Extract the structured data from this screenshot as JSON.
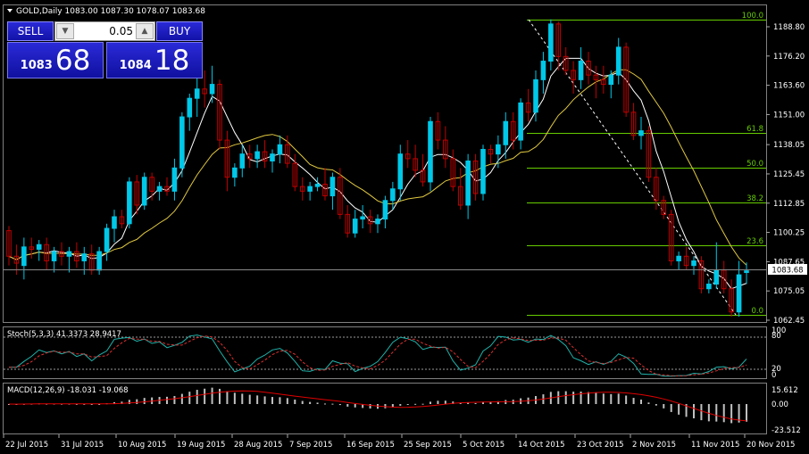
{
  "header": {
    "title": "GOLD,Daily  1083.00 1087.30 1078.07 1083.68"
  },
  "trade_panel": {
    "sell_label": "SELL",
    "buy_label": "BUY",
    "lot_value": "0.05",
    "sell_price_small": "1083",
    "sell_price_big": "68",
    "buy_price_small": "1084",
    "buy_price_big": "18"
  },
  "price_axis": {
    "ticks": [
      "1188.80",
      "1176.20",
      "1163.60",
      "1151.00",
      "1138.05",
      "1125.45",
      "1112.85",
      "1100.25",
      "1087.65",
      "1075.05",
      "1062.45"
    ],
    "current_price": "1083.68"
  },
  "fibonacci": {
    "levels": [
      "100.0",
      "61.8",
      "50.0",
      "38.2",
      "23.6",
      "0.0"
    ]
  },
  "stochastic": {
    "header": "Stoch(5,3,3) 41.3373 28.9417",
    "ticks": [
      "100",
      "80",
      "20",
      "0"
    ]
  },
  "macd": {
    "header": "MACD(12,26,9) -18.031 -19.068",
    "ticks": [
      "15.612",
      "0.00",
      "-23.512"
    ]
  },
  "time_axis": {
    "labels": [
      "22 Jul 2015",
      "31 Jul 2015",
      "10 Aug 2015",
      "19 Aug 2015",
      "28 Aug 2015",
      "7 Sep 2015",
      "16 Sep 2015",
      "25 Sep 2015",
      "5 Oct 2015",
      "14 Oct 2015",
      "23 Oct 2015",
      "2 Nov 2015",
      "11 Nov 2015",
      "20 Nov 2015"
    ]
  },
  "colors": {
    "background": "#000000",
    "bull_candle": "#00c8e8",
    "bear_candle": "#c00000",
    "fast_ma": "#ffffff",
    "slow_ma": "#e0c840",
    "fib_line": "#66cc00",
    "stoch_main": "#20b2aa",
    "stoch_signal": "#e03030",
    "macd_hist": "#c0c0c0",
    "macd_signal": "#e00000"
  },
  "chart_data": {
    "type": "candlestick",
    "symbol": "GOLD",
    "timeframe": "Daily",
    "last_bar": {
      "open": 1083.0,
      "high": 1087.3,
      "low": 1078.07,
      "close": 1083.68
    },
    "ylim": [
      1058,
      1195
    ],
    "candles": [
      [
        1101,
        1103,
        1086,
        1090
      ],
      [
        1090,
        1095,
        1082,
        1087
      ],
      [
        1086,
        1098,
        1080,
        1094
      ],
      [
        1094,
        1098,
        1089,
        1093
      ],
      [
        1093,
        1097,
        1088,
        1095
      ],
      [
        1095,
        1098,
        1084,
        1088
      ],
      [
        1088,
        1094,
        1083,
        1092
      ],
      [
        1092,
        1096,
        1086,
        1090
      ],
      [
        1090,
        1094,
        1083,
        1092
      ],
      [
        1092,
        1096,
        1085,
        1088
      ],
      [
        1088,
        1094,
        1082,
        1091
      ],
      [
        1091,
        1095,
        1082,
        1084
      ],
      [
        1084,
        1094,
        1082,
        1092
      ],
      [
        1092,
        1104,
        1088,
        1102
      ],
      [
        1102,
        1110,
        1096,
        1107
      ],
      [
        1107,
        1110,
        1102,
        1104
      ],
      [
        1104,
        1124,
        1102,
        1122
      ],
      [
        1122,
        1125,
        1108,
        1112
      ],
      [
        1112,
        1126,
        1110,
        1124
      ],
      [
        1124,
        1126,
        1114,
        1118
      ],
      [
        1118,
        1122,
        1114,
        1120
      ],
      [
        1120,
        1124,
        1116,
        1118
      ],
      [
        1118,
        1132,
        1114,
        1128
      ],
      [
        1128,
        1152,
        1124,
        1150
      ],
      [
        1150,
        1160,
        1144,
        1158
      ],
      [
        1158,
        1168,
        1150,
        1162
      ],
      [
        1162,
        1170,
        1154,
        1160
      ],
      [
        1160,
        1172,
        1156,
        1164
      ],
      [
        1164,
        1166,
        1136,
        1140
      ],
      [
        1140,
        1144,
        1118,
        1124
      ],
      [
        1124,
        1130,
        1120,
        1128
      ],
      [
        1128,
        1138,
        1124,
        1134
      ],
      [
        1134,
        1138,
        1128,
        1132
      ],
      [
        1132,
        1138,
        1128,
        1135
      ],
      [
        1135,
        1140,
        1128,
        1131
      ],
      [
        1131,
        1136,
        1126,
        1134
      ],
      [
        1134,
        1142,
        1130,
        1138
      ],
      [
        1138,
        1142,
        1128,
        1130
      ],
      [
        1130,
        1134,
        1118,
        1120
      ],
      [
        1120,
        1124,
        1114,
        1118
      ],
      [
        1118,
        1122,
        1114,
        1120
      ],
      [
        1120,
        1124,
        1118,
        1121
      ],
      [
        1121,
        1128,
        1114,
        1116
      ],
      [
        1116,
        1126,
        1110,
        1124
      ],
      [
        1124,
        1128,
        1106,
        1108
      ],
      [
        1108,
        1112,
        1098,
        1100
      ],
      [
        1100,
        1110,
        1098,
        1106
      ],
      [
        1106,
        1112,
        1102,
        1107
      ],
      [
        1107,
        1110,
        1100,
        1104
      ],
      [
        1104,
        1108,
        1100,
        1106
      ],
      [
        1106,
        1116,
        1102,
        1114
      ],
      [
        1114,
        1122,
        1110,
        1119
      ],
      [
        1119,
        1138,
        1114,
        1134
      ],
      [
        1134,
        1140,
        1128,
        1132
      ],
      [
        1132,
        1138,
        1124,
        1127
      ],
      [
        1127,
        1134,
        1120,
        1122
      ],
      [
        1122,
        1150,
        1118,
        1148
      ],
      [
        1148,
        1152,
        1136,
        1140
      ],
      [
        1140,
        1146,
        1128,
        1132
      ],
      [
        1132,
        1136,
        1118,
        1120
      ],
      [
        1120,
        1128,
        1110,
        1112
      ],
      [
        1112,
        1134,
        1106,
        1131
      ],
      [
        1131,
        1134,
        1114,
        1117
      ],
      [
        1117,
        1138,
        1114,
        1136
      ],
      [
        1136,
        1138,
        1130,
        1134
      ],
      [
        1134,
        1142,
        1128,
        1138
      ],
      [
        1138,
        1152,
        1132,
        1148
      ],
      [
        1148,
        1152,
        1136,
        1140
      ],
      [
        1140,
        1158,
        1136,
        1156
      ],
      [
        1156,
        1162,
        1148,
        1152
      ],
      [
        1152,
        1170,
        1148,
        1166
      ],
      [
        1166,
        1178,
        1160,
        1174
      ],
      [
        1174,
        1192,
        1170,
        1190
      ],
      [
        1190,
        1191,
        1170,
        1176
      ],
      [
        1176,
        1180,
        1168,
        1170
      ],
      [
        1170,
        1174,
        1160,
        1166
      ],
      [
        1166,
        1180,
        1162,
        1174
      ],
      [
        1174,
        1178,
        1164,
        1168
      ],
      [
        1168,
        1172,
        1158,
        1166
      ],
      [
        1166,
        1172,
        1160,
        1164
      ],
      [
        1164,
        1170,
        1158,
        1168
      ],
      [
        1168,
        1184,
        1164,
        1180
      ],
      [
        1180,
        1182,
        1150,
        1152
      ],
      [
        1152,
        1156,
        1140,
        1142
      ],
      [
        1142,
        1150,
        1136,
        1144
      ],
      [
        1144,
        1146,
        1122,
        1124
      ],
      [
        1124,
        1128,
        1110,
        1114
      ],
      [
        1114,
        1116,
        1106,
        1108
      ],
      [
        1108,
        1110,
        1086,
        1088
      ],
      [
        1088,
        1092,
        1084,
        1090
      ],
      [
        1090,
        1094,
        1084,
        1086
      ],
      [
        1086,
        1090,
        1082,
        1088
      ],
      [
        1088,
        1090,
        1074,
        1076
      ],
      [
        1076,
        1080,
        1074,
        1078
      ],
      [
        1078,
        1096,
        1076,
        1084
      ],
      [
        1084,
        1088,
        1074,
        1076
      ],
      [
        1076,
        1080,
        1064,
        1066
      ],
      [
        1066,
        1088,
        1064,
        1082
      ],
      [
        1083,
        1087.3,
        1078.07,
        1083.68
      ]
    ]
  }
}
